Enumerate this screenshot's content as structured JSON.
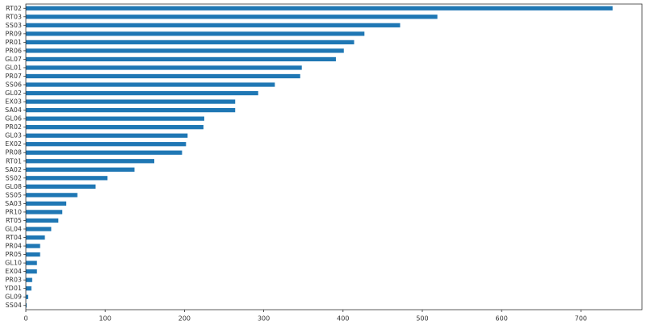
{
  "chart_data": {
    "type": "barh",
    "categories": [
      "RT02",
      "RT03",
      "SS03",
      "PR09",
      "PR01",
      "PR06",
      "GL07",
      "GL01",
      "PR07",
      "SS06",
      "GL02",
      "EX03",
      "SA04",
      "GL06",
      "PR02",
      "GL03",
      "EX02",
      "PR08",
      "RT01",
      "SA02",
      "SS02",
      "GL08",
      "SS05",
      "SA03",
      "PR10",
      "RT05",
      "GL04",
      "RT04",
      "PR04",
      "PR05",
      "GL10",
      "EX04",
      "PR03",
      "YD01",
      "GL09",
      "SS04"
    ],
    "values": [
      740,
      519,
      472,
      427,
      414,
      401,
      391,
      348,
      346,
      314,
      293,
      264,
      264,
      225,
      224,
      204,
      202,
      197,
      162,
      137,
      103,
      88,
      65,
      51,
      46,
      41,
      32,
      24,
      18,
      18,
      14,
      14,
      8,
      7,
      3,
      1
    ],
    "color": "#1f77b4",
    "xlim": [
      0,
      777
    ],
    "xticks": [
      0,
      100,
      200,
      300,
      400,
      500,
      600,
      700
    ]
  }
}
